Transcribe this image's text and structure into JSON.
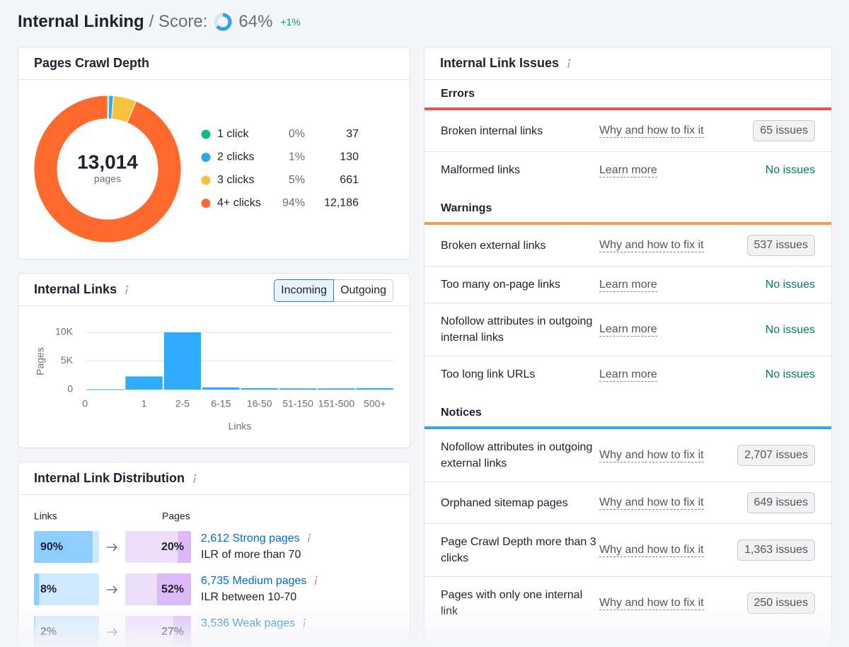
{
  "header": {
    "title": "Internal Linking",
    "score_label": "/ Score:",
    "score": {
      "value": 64,
      "label": "64%"
    },
    "change": "+1%"
  },
  "crawl_depth": {
    "title": "Pages Crawl Depth",
    "total": "13,014",
    "total_label": "pages",
    "rows": [
      {
        "name": "1 click",
        "share": "0%",
        "pages": 37,
        "color": "#14b88a"
      },
      {
        "name": "2 clicks",
        "share": "1%",
        "pages": 130,
        "color": "#2aa8f0"
      },
      {
        "name": "3 clicks",
        "share": "5%",
        "pages": 661,
        "color": "#f7c23b"
      },
      {
        "name": "4+ clicks",
        "share": "94%",
        "pages": {
          "value": 12186,
          "label": "12,186"
        },
        "color": "#ff6a2c"
      }
    ]
  },
  "internal_links": {
    "title": "Internal Links",
    "tabs": [
      "Incoming",
      "Outgoing"
    ],
    "active_tab": 0,
    "chart": {
      "type": "bar",
      "y_label": "Pages",
      "x_label": "Links",
      "color": "#2eaaff",
      "categories": [
        "0",
        "1",
        "2-5",
        "6-15",
        "16-50",
        "51-150",
        "151-500",
        "500+"
      ],
      "values": [
        50,
        2300,
        10000,
        400,
        250,
        220,
        220,
        250
      ],
      "ylim": [
        0,
        10000
      ],
      "yticks": [
        0,
        {
          "value": 5000,
          "label": "5K"
        },
        {
          "value": 10000,
          "label": "10K"
        }
      ],
      "grid": true
    }
  },
  "distribution": {
    "title": "Internal Link Distribution",
    "col_links": "Links",
    "col_pages": "Pages",
    "rows": [
      {
        "links": {
          "value": 90,
          "label": "90%"
        },
        "pages": {
          "value": 20,
          "label": "20%"
        },
        "name": "2,612 Strong pages",
        "desc": "ILR of more than 70"
      },
      {
        "links": {
          "value": 8,
          "label": "8%"
        },
        "pages": {
          "value": 52,
          "label": "52%"
        },
        "name": "6,735 Medium pages",
        "desc": "ILR between 10-70"
      },
      {
        "links": {
          "value": 2,
          "label": "2%"
        },
        "pages": {
          "value": 27,
          "label": "27%"
        },
        "name": "3,536 Weak pages"
      }
    ]
  },
  "issues": {
    "title": "Internal Link Issues",
    "groups": [
      {
        "name": "Errors",
        "color": "#ec4e56",
        "items": [
          {
            "name": "Broken internal links",
            "link": "Why and how to fix it",
            "status": "65 issues"
          },
          {
            "name": "Malformed links",
            "link": "Learn more",
            "status": "No issues"
          }
        ]
      },
      {
        "name": "Warnings",
        "color": "#f59a4c",
        "items": [
          {
            "name": "Broken external links",
            "link": "Why and how to fix it",
            "status": "537 issues"
          },
          {
            "name": "Too many on-page links",
            "link": "Learn more",
            "status": "No issues"
          },
          {
            "name": "Nofollow attributes in outgoing internal links",
            "link": "Learn more",
            "status": "No issues"
          },
          {
            "name": "Too long link URLs",
            "link": "Learn more",
            "status": "No issues"
          }
        ]
      },
      {
        "name": "Notices",
        "color": "#2eaae8",
        "items": [
          {
            "name": "Nofollow attributes in outgoing external links",
            "link": "Why and how to fix it",
            "status": "2,707 issues"
          },
          {
            "name": "Orphaned sitemap pages",
            "link": "Why and how to fix it",
            "status": "649 issues"
          },
          {
            "name": "Page Crawl Depth more than 3 clicks",
            "link": "Why and how to fix it",
            "status": "1,363 issues"
          },
          {
            "name": "Pages with only one internal link",
            "link": "Why and how to fix it",
            "status": "250 issues"
          }
        ]
      }
    ]
  }
}
